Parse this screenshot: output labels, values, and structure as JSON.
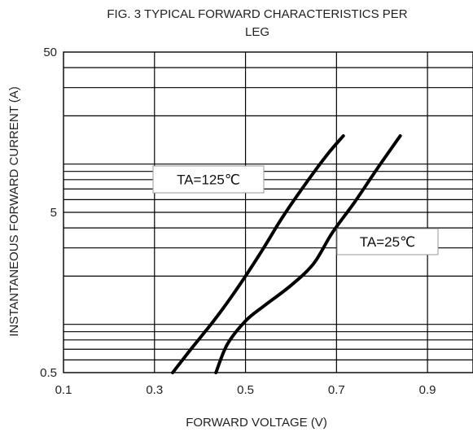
{
  "chart_data": {
    "type": "line",
    "title_lines": [
      "FIG. 3 TYPICAL FORWARD CHARACTERISTICS PER",
      "LEG"
    ],
    "xlabel": "FORWARD VOLTAGE (V)",
    "ylabel": "INSTANTANEOUS FORWARD CURRENT (A)",
    "x_scale": "linear",
    "y_scale": "log",
    "xlim": [
      0.1,
      1.0
    ],
    "ylim": [
      0.5,
      50
    ],
    "x_ticks": [
      0.1,
      0.3,
      0.5,
      0.7,
      0.9
    ],
    "x_tick_labels": [
      "0.1",
      "0.3",
      "0.5",
      "0.7",
      "0.9"
    ],
    "y_tick_labels": [
      {
        "value": 50,
        "label": "50"
      },
      {
        "value": 5,
        "label": "5"
      },
      {
        "value": 0.5,
        "label": "0.5"
      }
    ],
    "grid": true,
    "series": [
      {
        "name": "TA=125℃",
        "x": [
          0.34,
          0.38,
          0.43,
          0.47,
          0.5,
          0.54,
          0.58,
          0.63,
          0.68,
          0.715
        ],
        "y": [
          0.5,
          0.7,
          1.05,
          1.5,
          2.0,
          3.0,
          4.6,
          7.4,
          11.5,
          15.0
        ]
      },
      {
        "name": "TA=25℃",
        "x": [
          0.435,
          0.46,
          0.5,
          0.54,
          0.6,
          0.65,
          0.69,
          0.74,
          0.79,
          0.84
        ],
        "y": [
          0.5,
          0.75,
          1.05,
          1.3,
          1.75,
          2.4,
          3.7,
          5.8,
          9.4,
          15.0
        ]
      }
    ],
    "annotations": [
      {
        "text": "TA=125℃",
        "series": 0
      },
      {
        "text": "TA=25℃",
        "series": 1
      }
    ]
  },
  "colors": {
    "curve": "#000000",
    "grid": "#000000",
    "background": "#ffffff"
  }
}
